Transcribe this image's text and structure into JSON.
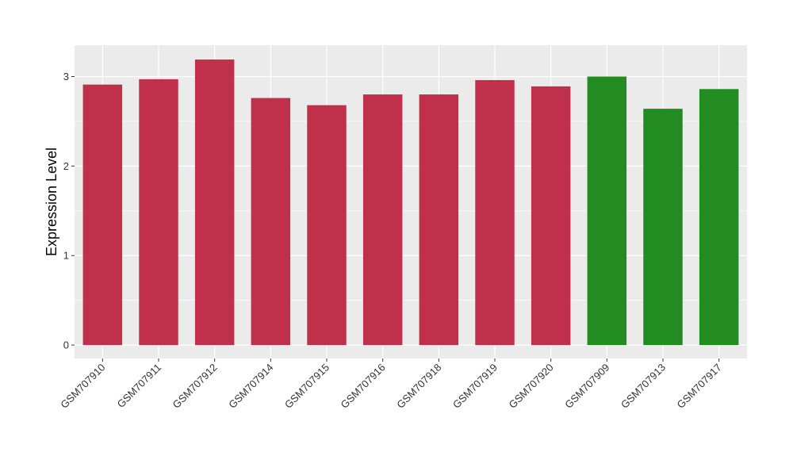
{
  "chart_data": {
    "type": "bar",
    "title": "",
    "xlabel": "",
    "ylabel": "Expression Level",
    "ylim": [
      -0.15,
      3.35
    ],
    "yticks": [
      0,
      1,
      2,
      3
    ],
    "grid": true,
    "categories": [
      "GSM707910",
      "GSM707911",
      "GSM707912",
      "GSM707914",
      "GSM707915",
      "GSM707916",
      "GSM707918",
      "GSM707919",
      "GSM707920",
      "GSM707909",
      "GSM707913",
      "GSM707917"
    ],
    "values": [
      2.91,
      2.97,
      3.19,
      2.76,
      2.68,
      2.8,
      2.8,
      2.96,
      2.89,
      3.0,
      2.64,
      2.86
    ],
    "bar_colors": [
      "#C0304A",
      "#C0304A",
      "#C0304A",
      "#C0304A",
      "#C0304A",
      "#C0304A",
      "#C0304A",
      "#C0304A",
      "#C0304A",
      "#228B22",
      "#228B22",
      "#228B22"
    ],
    "panel_color": "#EBEBEB",
    "grid_color": "#FFFFFF"
  }
}
